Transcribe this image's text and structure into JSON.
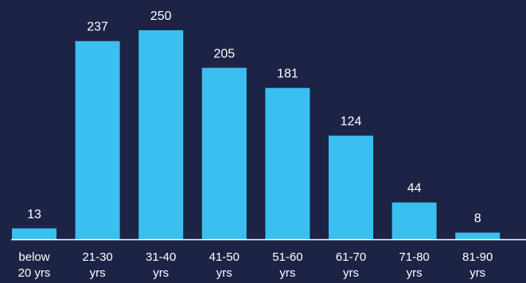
{
  "chart_data": {
    "type": "bar",
    "categories": [
      [
        "below",
        "20 yrs"
      ],
      [
        "21-30",
        "yrs"
      ],
      [
        "31-40",
        "yrs"
      ],
      [
        "41-50",
        "yrs"
      ],
      [
        "51-60",
        "yrs"
      ],
      [
        "61-70",
        "yrs"
      ],
      [
        "71-80",
        "yrs"
      ],
      [
        "81-90",
        "yrs"
      ]
    ],
    "values": [
      13,
      237,
      250,
      205,
      181,
      124,
      44,
      8
    ],
    "data_labels": [
      "13",
      "237",
      "250",
      "205",
      "181",
      "124",
      "44",
      "8"
    ],
    "title": "",
    "xlabel": "",
    "ylabel": "",
    "ylim": [
      0,
      250
    ],
    "grid": false,
    "colors": {
      "background": "#1c2345",
      "bar": "#3bbef0",
      "text": "#ffffff",
      "axis": "#ffffff"
    }
  }
}
